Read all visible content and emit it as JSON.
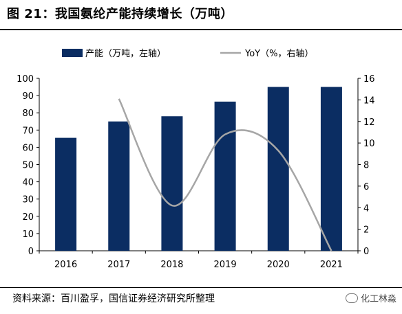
{
  "title": "图  21：我国氨纶产能持续增长（万吨）",
  "source": "资料来源：百川盈孚，国信证券经济研究所整理",
  "watermark": "化工林淼",
  "colors": {
    "bar": "#0b2d62",
    "line": "#a6a6a6"
  },
  "chart_data": {
    "type": "bar",
    "categories": [
      "2016",
      "2017",
      "2018",
      "2019",
      "2020",
      "2021"
    ],
    "series": [
      {
        "name": "产能（万吨，左轴）",
        "type": "bar",
        "axis": "left",
        "values": [
          65.5,
          75,
          78,
          86.5,
          95,
          95
        ]
      },
      {
        "name": "YoY（%，右轴）",
        "type": "line",
        "axis": "right",
        "values": [
          null,
          14.1,
          4.2,
          10.8,
          9.3,
          0
        ]
      }
    ],
    "y_left": {
      "min": 0,
      "max": 100,
      "ticks": [
        0,
        10,
        20,
        30,
        40,
        50,
        60,
        70,
        80,
        90,
        100
      ]
    },
    "y_right": {
      "min": 0,
      "max": 16,
      "ticks": [
        0,
        2,
        4,
        6,
        8,
        10,
        12,
        14,
        16
      ]
    },
    "grid": false,
    "legend_position": "top"
  }
}
